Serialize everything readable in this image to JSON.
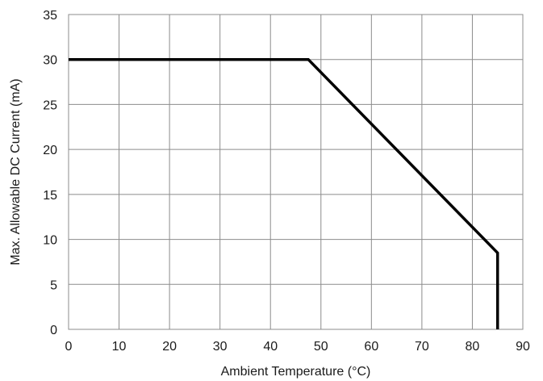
{
  "chart_data": {
    "type": "line",
    "title": "",
    "xlabel": "Ambient Temperature (°C)",
    "ylabel": "Max. Allowable DC Current (mA)",
    "xlim": [
      0,
      90
    ],
    "ylim": [
      0,
      35
    ],
    "xticks": [
      0,
      10,
      20,
      30,
      40,
      50,
      60,
      70,
      80,
      90
    ],
    "yticks": [
      0,
      5,
      10,
      15,
      20,
      25,
      30,
      35
    ],
    "grid": true,
    "legend": "none",
    "series": [
      {
        "color": "#000000",
        "x": [
          0,
          47.5,
          85,
          85
        ],
        "y": [
          30,
          30,
          8.5,
          0
        ]
      }
    ]
  }
}
